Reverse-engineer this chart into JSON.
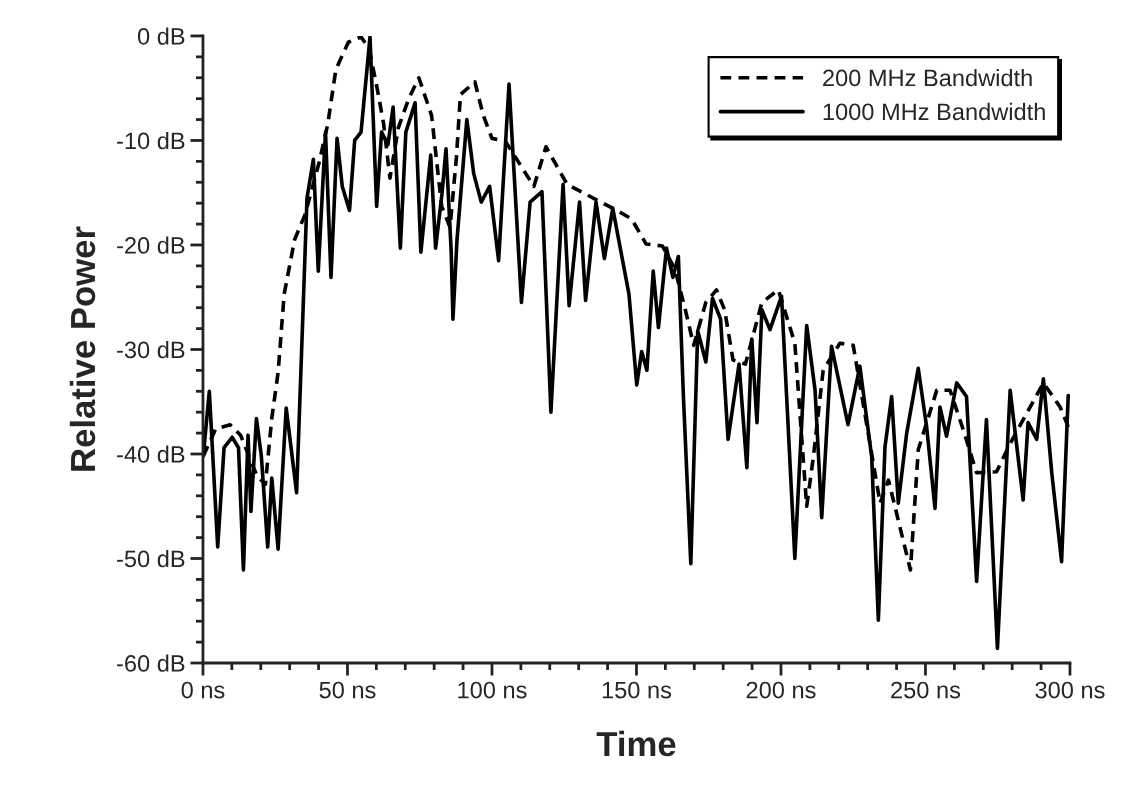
{
  "chart_data": {
    "type": "line",
    "xlabel": "Time",
    "ylabel": "Relative Power",
    "xlim": [
      0,
      300
    ],
    "ylim": [
      -60,
      0
    ],
    "xticks": [
      {
        "value": 0,
        "label": "0 ns"
      },
      {
        "value": 50,
        "label": "50 ns"
      },
      {
        "value": 100,
        "label": "100 ns"
      },
      {
        "value": 150,
        "label": "150 ns"
      },
      {
        "value": 200,
        "label": "200 ns"
      },
      {
        "value": 250,
        "label": "250 ns"
      },
      {
        "value": 300,
        "label": "300 ns"
      }
    ],
    "yticks": [
      {
        "value": -60,
        "label": "-60 dB"
      },
      {
        "value": -50,
        "label": "-50 dB"
      },
      {
        "value": -40,
        "label": "-40 dB"
      },
      {
        "value": -30,
        "label": "-30 dB"
      },
      {
        "value": -20,
        "label": "-20 dB"
      },
      {
        "value": -10,
        "label": "-10 dB"
      },
      {
        "value": 0,
        "label": "0 dB"
      }
    ],
    "legend": "top right",
    "series": [
      {
        "name": "200 MHz Bandwidth",
        "color": "#000000",
        "line_style": "dashed",
        "x": [
          0.1,
          4.4,
          9.4,
          13,
          18.7,
          21.6,
          23.8,
          26,
          28.1,
          31.7,
          35.3,
          40.3,
          43.2,
          46,
          50.3,
          54.7,
          57.5,
          60.4,
          62.5,
          64.7,
          67.6,
          71.2,
          74.7,
          79.1,
          82.6,
          85.5,
          87.7,
          89.1,
          94.1,
          97,
          100,
          104.7,
          114.5,
          118.7,
          126,
          143.2,
          148.3,
          153.3,
          159,
          163.3,
          166.9,
          169.8,
          174,
          177.7,
          180.5,
          183.4,
          187.7,
          193.4,
          199.1,
          204.8,
          208.9,
          211.2,
          214.6,
          220.4,
          225,
          234.3,
          237.2,
          244.8,
          247.5,
          253.9,
          258.5,
          263.1,
          267.7,
          274.6,
          279.3,
          290.8,
          296.6,
          299.4
        ],
        "values": [
          -40.2,
          -37.6,
          -37.2,
          -38.2,
          -42.1,
          -42.9,
          -36.6,
          -32.2,
          -24.7,
          -19.5,
          -17.1,
          -12,
          -8.4,
          -3.2,
          -0.6,
          -0.1,
          -1.2,
          -5.2,
          -8.4,
          -13.6,
          -8.8,
          -6,
          -4,
          -7.6,
          -16.3,
          -18.3,
          -11.6,
          -5.6,
          -4.4,
          -7.6,
          -9.8,
          -10.1,
          -14.4,
          -10.6,
          -14.2,
          -16.7,
          -17.5,
          -19.9,
          -20.1,
          -22.3,
          -26.2,
          -29.6,
          -25.5,
          -24.3,
          -26.2,
          -31,
          -31.4,
          -25.5,
          -24.3,
          -29.4,
          -45,
          -40.3,
          -32,
          -29.4,
          -29.6,
          -44.7,
          -42.5,
          -51.1,
          -39.6,
          -33.9,
          -33.9,
          -37.7,
          -41.8,
          -41.7,
          -39,
          -33.2,
          -35.5,
          -37.4
        ]
      },
      {
        "name": "1000 MHz Bandwidth",
        "color": "#000000",
        "line_style": "solid",
        "x": [
          0.1,
          2.2,
          5.1,
          7.3,
          10.1,
          12.3,
          14,
          15.6,
          16.6,
          18.5,
          20.2,
          22.4,
          23.8,
          26,
          28.8,
          32.4,
          36,
          38.2,
          39.9,
          42.4,
          44.3,
          46.4,
          48.2,
          50.7,
          52.5,
          54.7,
          57.8,
          60.1,
          61.8,
          64,
          65.8,
          68.3,
          70.2,
          73.4,
          75.4,
          78.8,
          80.5,
          82.7,
          84.1,
          85.9,
          86.5,
          87.9,
          91.3,
          93.7,
          96.3,
          99.2,
          102.3,
          105.9,
          110.2,
          113.2,
          117.3,
          120.4,
          124.6,
          126.7,
          130.3,
          132.4,
          136,
          138.9,
          141.8,
          147.4,
          150.1,
          151.8,
          153.6,
          155.8,
          157.6,
          160.4,
          162.6,
          164.5,
          166.2,
          168.8,
          171.2,
          174,
          176.3,
          179.1,
          181.7,
          185.5,
          188.2,
          189.9,
          191.7,
          193.4,
          196.2,
          200.2,
          204.8,
          208.9,
          211.8,
          214.1,
          217.5,
          223.2,
          227.3,
          231.4,
          233.7,
          236,
          238.3,
          240.6,
          243.5,
          247.5,
          250.4,
          253.3,
          255,
          257.3,
          260.8,
          264.2,
          267.7,
          271.1,
          274.9,
          279.3,
          283.8,
          285.5,
          288.5,
          290.8,
          293.7,
          297.1,
          299.4
        ],
        "values": [
          -40.2,
          -34,
          -48.9,
          -39.4,
          -38.4,
          -39.4,
          -51.1,
          -38.2,
          -45.5,
          -36.6,
          -40.2,
          -48.9,
          -42.3,
          -49.1,
          -35.6,
          -43.7,
          -15.5,
          -11.8,
          -22.5,
          -9.2,
          -23.1,
          -9.8,
          -14.4,
          -16.7,
          -10,
          -9.2,
          -0.1,
          -16.3,
          -9.2,
          -10.4,
          -6.8,
          -20.3,
          -9.2,
          -6.4,
          -20.7,
          -11.4,
          -20.3,
          -15.1,
          -10.8,
          -20.7,
          -27.1,
          -19.5,
          -8,
          -13.2,
          -15.9,
          -14.4,
          -21.5,
          -4.6,
          -25.5,
          -15.9,
          -14.9,
          -36,
          -14.2,
          -25.8,
          -15.9,
          -25.3,
          -15.9,
          -21.3,
          -16.5,
          -24.7,
          -33.4,
          -30.2,
          -32,
          -22.5,
          -27.9,
          -20.3,
          -23.1,
          -21.1,
          -34.2,
          -50.5,
          -28.2,
          -31.2,
          -25.1,
          -27.1,
          -38.6,
          -31.4,
          -41.3,
          -29,
          -37,
          -26.2,
          -28.1,
          -24.9,
          -50,
          -27.7,
          -33.9,
          -46.1,
          -29.7,
          -37.2,
          -31.6,
          -40.3,
          -55.9,
          -39.3,
          -34.5,
          -44.7,
          -38,
          -31.8,
          -37.4,
          -45.2,
          -35.5,
          -38.3,
          -33.2,
          -34.5,
          -52.2,
          -36.7,
          -58.6,
          -33.9,
          -44.4,
          -37,
          -38.6,
          -32.8,
          -41.8,
          -50.3,
          -34.4
        ]
      }
    ]
  }
}
